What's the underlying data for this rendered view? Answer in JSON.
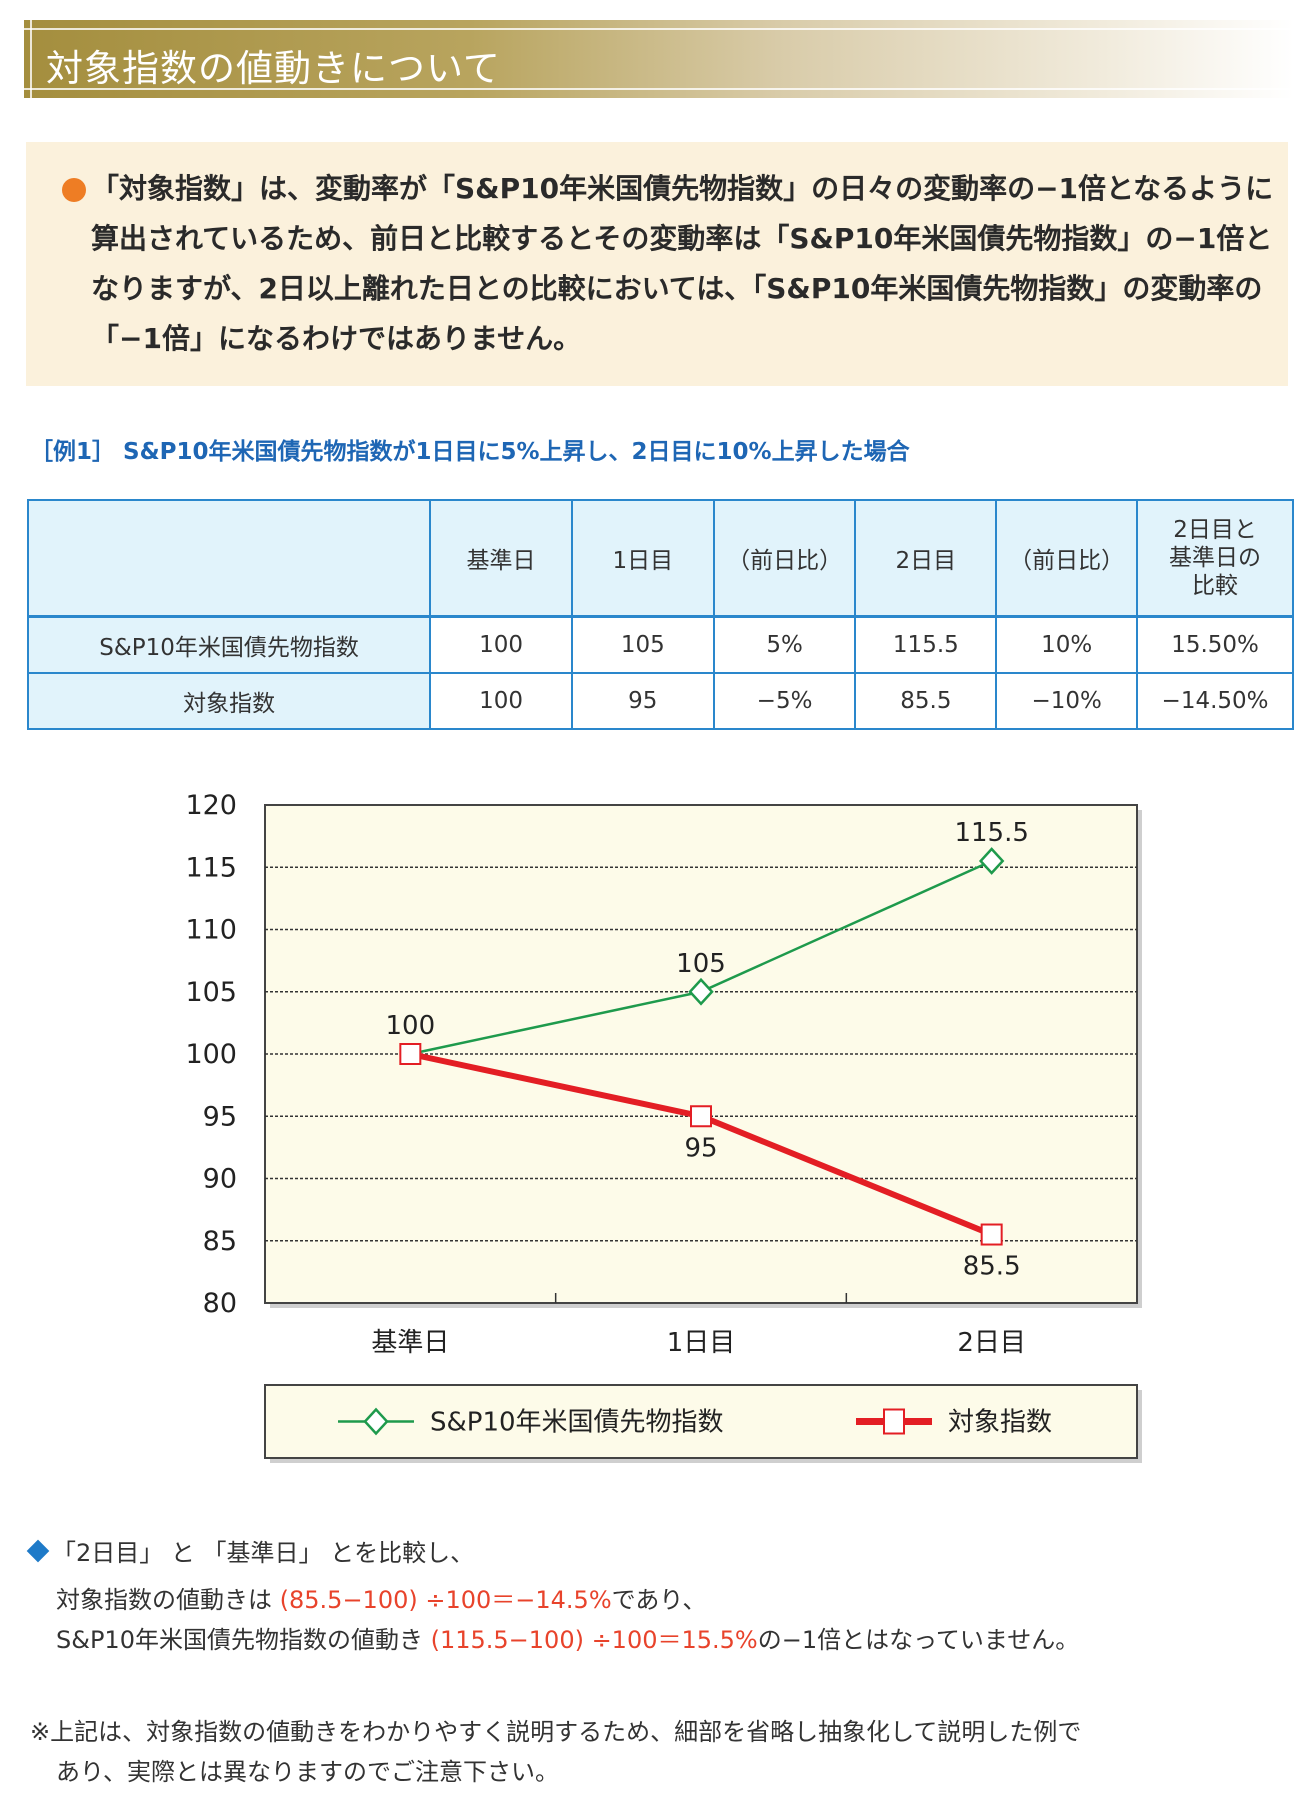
{
  "heading": {
    "title": "対象指数の値動きについて"
  },
  "note": {
    "bullet_icon": "orange-circle-icon",
    "text": "「対象指数」は、変動率が「S&P10年米国債先物指数」の日々の変動率の−1倍となるように算出されているため、前日と比較するとその変動率は「S&P10年米国債先物指数」の−1倍となりますが、2日以上離れた日との比較においては、「S&P10年米国債先物指数」の変動率の「−1倍」になるわけではありません。"
  },
  "example": {
    "title": "［例1］ S&P10年米国債先物指数が1日目に5%上昇し、2日目に10%上昇した場合"
  },
  "table": {
    "headers": [
      "",
      "基準日",
      "1日目",
      "（前日比）",
      "2日目",
      "（前日比）",
      "2日目と\n基準日の\n比較"
    ],
    "rows": [
      {
        "label": "S&P10年米国債先物指数",
        "cells": [
          "100",
          "105",
          "5%",
          "115.5",
          "10%",
          "15.50%"
        ]
      },
      {
        "label": "対象指数",
        "cells": [
          "100",
          "95",
          "−5%",
          "85.5",
          "−10%",
          "−14.50%"
        ]
      }
    ]
  },
  "chart_data": {
    "type": "line",
    "title": "",
    "xlabel": "",
    "ylabel": "",
    "categories": [
      "基準日",
      "1日目",
      "2日目"
    ],
    "ylim": [
      80,
      120
    ],
    "yticks": [
      "120",
      "115",
      "110",
      "105",
      "100",
      "95",
      "90",
      "85",
      "80"
    ],
    "grid": "dashed horizontal",
    "legend_position": "bottom",
    "series": [
      {
        "name": "S&P10年米国債先物指数",
        "values": [
          100,
          105,
          115.5
        ],
        "labels": [
          "100",
          "105",
          "115.5"
        ],
        "color": "#1e9a4c",
        "marker": "diamond"
      },
      {
        "name": "対象指数",
        "values": [
          100,
          95,
          85.5
        ],
        "labels": [
          "",
          "95",
          "85.5"
        ],
        "color": "#e31e24",
        "marker": "square"
      }
    ]
  },
  "summary": {
    "bullet_icon": "blue-diamond-icon",
    "line1": "「2日目」 と 「基準日」 とを比較し、",
    "line2_pre": "対象指数の値動きは ",
    "line2_calc": "(85.5−100) ÷100＝−14.5%",
    "line2_post": "であり、",
    "line3_pre": "S&P10年米国債先物指数の値動き ",
    "line3_calc": "(115.5−100) ÷100＝15.5%",
    "line3_post": "の−1倍とはなっていません。"
  },
  "disclaimer": {
    "line1": "※上記は、対象指数の値動きをわかりやすく説明するため、細部を省略し抽象化して説明した例で",
    "line2": "あり、実際とは異なりますのでご注意下さい。"
  }
}
